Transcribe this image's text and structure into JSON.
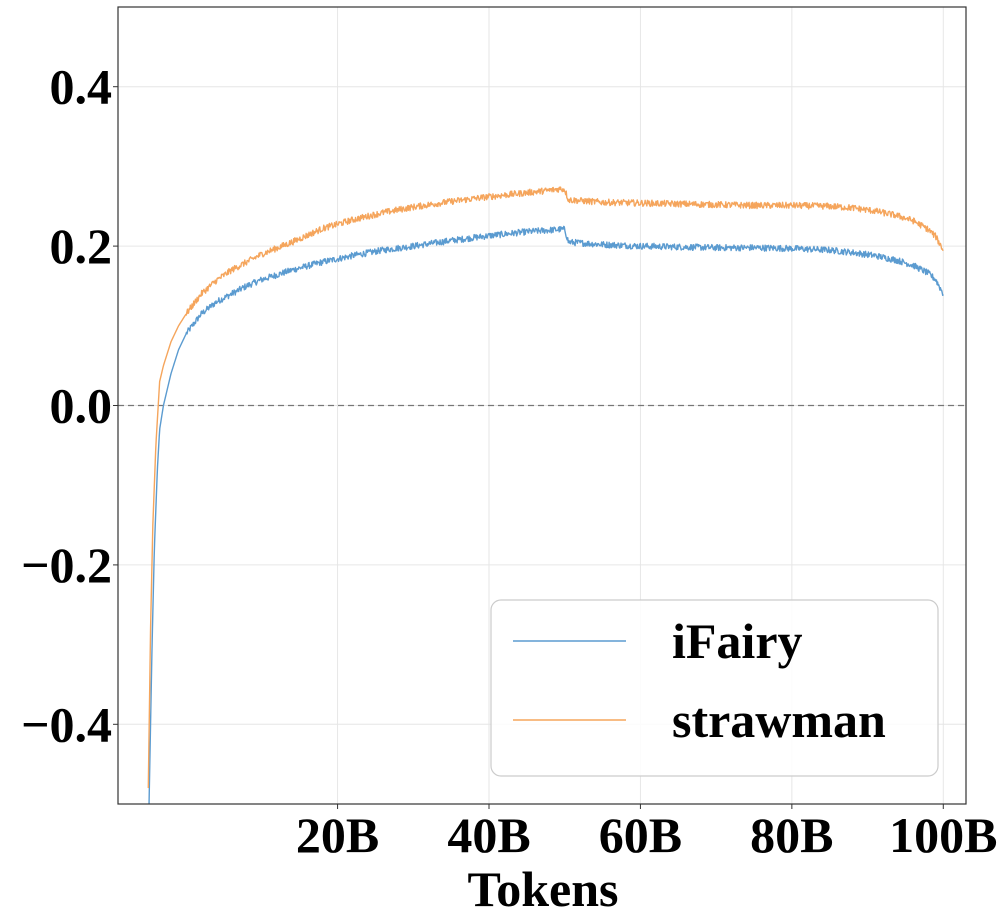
{
  "chart_data": {
    "type": "line",
    "title": "",
    "xlabel": "Tokens",
    "ylabel": "",
    "x_unit": "B tokens",
    "xlim": [
      -9,
      103
    ],
    "ylim": [
      -0.5,
      0.5
    ],
    "x_ticks": [
      {
        "value": 20,
        "label": "20B"
      },
      {
        "value": 40,
        "label": "40B"
      },
      {
        "value": 60,
        "label": "60B"
      },
      {
        "value": 80,
        "label": "80B"
      },
      {
        "value": 100,
        "label": "100B"
      }
    ],
    "y_ticks": [
      {
        "value": 0.4,
        "label": "0.4"
      },
      {
        "value": 0.2,
        "label": "0.2"
      },
      {
        "value": 0.0,
        "label": "0.0"
      },
      {
        "value": -0.2,
        "label": "−0.2"
      },
      {
        "value": -0.4,
        "label": "−0.4"
      }
    ],
    "grid": true,
    "reference_line": {
      "y": 0.0,
      "style": "dashed",
      "color": "#777777"
    },
    "legend": {
      "position": "bottom-right"
    },
    "series": [
      {
        "name": "iFairy",
        "color": "#5b9bd0",
        "x": [
          -4.9,
          -4.5,
          -4.2,
          -3.8,
          -3.5,
          -3.0,
          -2.0,
          -1.0,
          0,
          2,
          4,
          6,
          8,
          10,
          14,
          18,
          22,
          26,
          30,
          35,
          40,
          45,
          48,
          49.5,
          50,
          50.5,
          55,
          60,
          65,
          70,
          75,
          80,
          85,
          88,
          91,
          94,
          96,
          98,
          99,
          100
        ],
        "y": [
          -0.5,
          -0.3,
          -0.18,
          -0.08,
          -0.03,
          0.0,
          0.04,
          0.07,
          0.09,
          0.115,
          0.13,
          0.14,
          0.15,
          0.158,
          0.17,
          0.18,
          0.188,
          0.195,
          0.2,
          0.207,
          0.213,
          0.218,
          0.22,
          0.221,
          0.221,
          0.205,
          0.202,
          0.2,
          0.199,
          0.198,
          0.198,
          0.197,
          0.195,
          0.192,
          0.188,
          0.182,
          0.176,
          0.166,
          0.158,
          0.14
        ]
      },
      {
        "name": "strawman",
        "color": "#f5a55c",
        "x": [
          -5.0,
          -4.7,
          -4.4,
          -4.0,
          -3.5,
          -3.0,
          -2.0,
          -1.0,
          0,
          2,
          4,
          6,
          8,
          10,
          14,
          18,
          22,
          26,
          30,
          35,
          40,
          45,
          48,
          49.5,
          50,
          50.5,
          55,
          60,
          65,
          70,
          75,
          80,
          85,
          88,
          91,
          94,
          96,
          98,
          99,
          100
        ],
        "y": [
          -0.48,
          -0.28,
          -0.15,
          -0.05,
          0.03,
          0.05,
          0.08,
          0.1,
          0.115,
          0.14,
          0.157,
          0.17,
          0.18,
          0.19,
          0.205,
          0.222,
          0.233,
          0.242,
          0.249,
          0.256,
          0.262,
          0.267,
          0.27,
          0.272,
          0.271,
          0.258,
          0.255,
          0.254,
          0.253,
          0.252,
          0.251,
          0.251,
          0.25,
          0.248,
          0.244,
          0.238,
          0.232,
          0.221,
          0.212,
          0.195
        ]
      }
    ]
  }
}
